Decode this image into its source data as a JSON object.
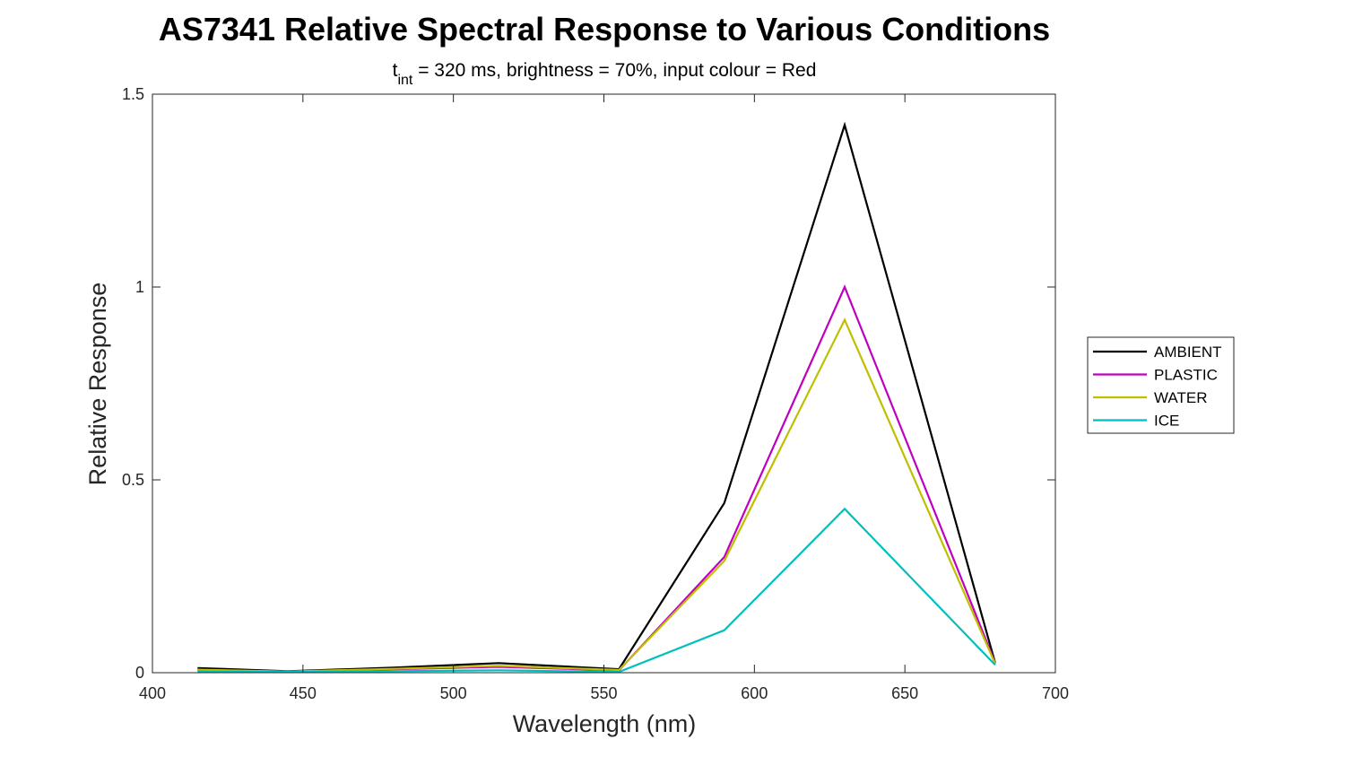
{
  "chart_data": {
    "type": "line",
    "title": "AS7341 Relative Spectral Response to Various Conditions",
    "subtitle": {
      "prefix": "t",
      "subscript": "int",
      "rest": " = 320 ms, brightness = 70%, input colour = Red"
    },
    "xlabel": "Wavelength (nm)",
    "ylabel": "Relative Response",
    "xlim": [
      400,
      700
    ],
    "ylim": [
      0,
      1.5
    ],
    "xticks": [
      400,
      450,
      500,
      550,
      600,
      650,
      700
    ],
    "yticks": [
      0,
      0.5,
      1,
      1.5
    ],
    "xtick_labels": [
      "400",
      "450",
      "500",
      "550",
      "600",
      "650",
      "700"
    ],
    "ytick_labels": [
      "0",
      "0.5",
      "1",
      "1.5"
    ],
    "grid": false,
    "legend_position": "right",
    "x": [
      415,
      445,
      480,
      515,
      555,
      590,
      630,
      680
    ],
    "series": [
      {
        "name": "AMBIENT",
        "color": "#000000",
        "values": [
          0.012,
          0.004,
          0.013,
          0.025,
          0.009,
          0.44,
          1.42,
          0.025
        ]
      },
      {
        "name": "PLASTIC",
        "color": "#bf00bf",
        "values": [
          0.006,
          0.003,
          0.009,
          0.015,
          0.006,
          0.3,
          1.0,
          0.025
        ]
      },
      {
        "name": "WATER",
        "color": "#bfbf00",
        "values": [
          0.008,
          0.003,
          0.01,
          0.018,
          0.007,
          0.29,
          0.915,
          0.023
        ]
      },
      {
        "name": "ICE",
        "color": "#00bfbf",
        "values": [
          0.003,
          0.002,
          0.004,
          0.006,
          0.002,
          0.11,
          0.425,
          0.02
        ]
      }
    ]
  }
}
